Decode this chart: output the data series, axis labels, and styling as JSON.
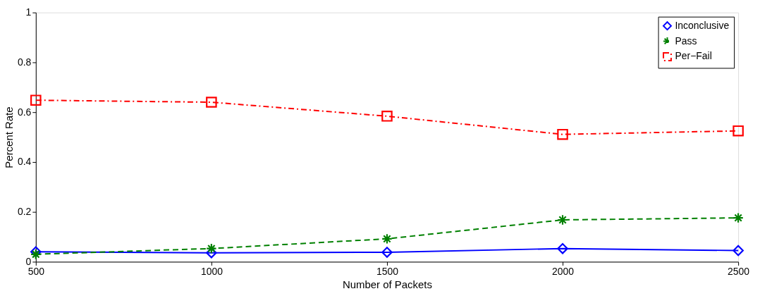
{
  "chart_data": {
    "type": "line",
    "xlabel": "Number of Packets",
    "ylabel": "Percent Rate",
    "x": [
      500,
      1000,
      1500,
      2000,
      2500
    ],
    "xlim": [
      500,
      2500
    ],
    "xticks": [
      500,
      1000,
      1500,
      2000,
      2500
    ],
    "ylim": [
      0,
      1
    ],
    "yticks": [
      0,
      0.2,
      0.4,
      0.6,
      0.8,
      1
    ],
    "grid": false,
    "legend": "top right",
    "series": [
      {
        "name": "Inconclusive",
        "color": "#0000ff",
        "marker": "diamond",
        "line_style": "solid",
        "values": [
          0.04,
          0.036,
          0.038,
          0.053,
          0.045
        ]
      },
      {
        "name": "Pass",
        "color": "#008000",
        "marker": "cross",
        "line_style": "dashed",
        "values": [
          0.03,
          0.053,
          0.092,
          0.168,
          0.176
        ]
      },
      {
        "name": "Per−Fail",
        "color": "#ff0000",
        "marker": "square",
        "line_style": "dashdot",
        "values": [
          0.648,
          0.64,
          0.584,
          0.511,
          0.525
        ]
      }
    ]
  }
}
